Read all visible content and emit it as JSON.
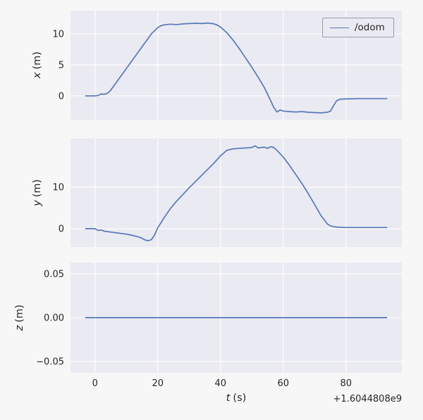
{
  "figure": {
    "background": "#f7f7f8",
    "axes_background": "#eaeaf2",
    "grid_color": "#ffffff",
    "line_color": "#5878b8",
    "text_color": "#262626",
    "legend_bg": "#eaeaf2",
    "legend_border": "#9a9aa2"
  },
  "legend": {
    "label": "/odom"
  },
  "xlabel": {
    "var": "t",
    "unit": "(s)"
  },
  "x_offset_text": "+1.6044808e9",
  "chart_data": [
    {
      "type": "line",
      "ylabel_var": "x",
      "ylabel_unit": "(m)",
      "xlim": [
        -7.8,
        97.8
      ],
      "ylim": [
        -3.9,
        13.75
      ],
      "xticks": [
        0,
        20,
        40,
        60,
        80
      ],
      "xtick_labels": [
        "0",
        "20",
        "40",
        "60",
        "80"
      ],
      "yticks": [
        0,
        5,
        10
      ],
      "ytick_labels": [
        "0",
        "5",
        "10"
      ],
      "legend": "/odom",
      "series": [
        {
          "name": "/odom",
          "x": [
            -3,
            0,
            1,
            2,
            3,
            4,
            5,
            6,
            8,
            10,
            12,
            14,
            16,
            18,
            20,
            21,
            22,
            24,
            26,
            28,
            30,
            32,
            34,
            36,
            38,
            39,
            40,
            42,
            44,
            46,
            48,
            50,
            52,
            54,
            56,
            57,
            58,
            59,
            60,
            62,
            64,
            66,
            68,
            70,
            72,
            74,
            75,
            76,
            77,
            78,
            80,
            84,
            88,
            93
          ],
          "y": [
            0,
            0,
            0.05,
            0.3,
            0.25,
            0.4,
            0.9,
            1.6,
            3.0,
            4.4,
            5.8,
            7.2,
            8.6,
            10.0,
            11.0,
            11.3,
            11.45,
            11.55,
            11.5,
            11.6,
            11.65,
            11.7,
            11.65,
            11.75,
            11.6,
            11.4,
            11.1,
            10.2,
            9.0,
            7.6,
            6.1,
            4.6,
            3.0,
            1.3,
            -0.8,
            -1.9,
            -2.6,
            -2.3,
            -2.45,
            -2.55,
            -2.6,
            -2.55,
            -2.65,
            -2.7,
            -2.75,
            -2.65,
            -2.5,
            -1.6,
            -0.8,
            -0.55,
            -0.5,
            -0.45,
            -0.45,
            -0.45
          ]
        }
      ]
    },
    {
      "type": "line",
      "ylabel_var": "y",
      "ylabel_unit": "(m)",
      "xlim": [
        -7.8,
        97.8
      ],
      "ylim": [
        -4.4,
        21.7
      ],
      "xticks": [
        0,
        20,
        40,
        60,
        80
      ],
      "xtick_labels": [
        "0",
        "20",
        "40",
        "60",
        "80"
      ],
      "yticks": [
        0,
        10
      ],
      "ytick_labels": [
        "0",
        "10"
      ],
      "series": [
        {
          "name": "/odom",
          "x": [
            -3,
            0,
            1,
            2,
            3,
            4,
            6,
            8,
            10,
            12,
            14,
            15,
            16,
            17,
            18,
            19,
            20,
            22,
            24,
            26,
            28,
            30,
            32,
            34,
            36,
            38,
            40,
            42,
            44,
            46,
            48,
            50,
            51,
            52,
            54,
            55,
            56,
            57,
            58,
            60,
            62,
            64,
            66,
            68,
            70,
            72,
            74,
            75,
            76,
            78,
            80,
            85,
            90,
            93
          ],
          "y": [
            0,
            0,
            -0.4,
            -0.3,
            -0.6,
            -0.7,
            -0.9,
            -1.1,
            -1.3,
            -1.6,
            -2.0,
            -2.3,
            -2.7,
            -2.9,
            -2.6,
            -1.5,
            0.2,
            2.6,
            4.8,
            6.6,
            8.2,
            9.8,
            11.3,
            12.8,
            14.3,
            15.8,
            17.5,
            18.8,
            19.2,
            19.3,
            19.4,
            19.5,
            19.9,
            19.4,
            19.6,
            19.3,
            19.7,
            19.5,
            18.8,
            17.2,
            15.2,
            13.0,
            10.8,
            8.4,
            5.8,
            3.2,
            1.2,
            0.7,
            0.5,
            0.35,
            0.3,
            0.3,
            0.3,
            0.3
          ]
        }
      ]
    },
    {
      "type": "line",
      "ylabel_var": "z",
      "ylabel_unit": "(m)",
      "xlim": [
        -7.8,
        97.8
      ],
      "ylim": [
        -0.063,
        0.063
      ],
      "xticks": [
        0,
        20,
        40,
        60,
        80
      ],
      "xtick_labels": [
        "0",
        "20",
        "40",
        "60",
        "80"
      ],
      "yticks": [
        -0.05,
        0,
        0.05
      ],
      "ytick_labels": [
        "−0.05",
        "0.00",
        "0.05"
      ],
      "show_xtick_labels": true,
      "series": [
        {
          "name": "/odom",
          "x": [
            -3,
            93
          ],
          "y": [
            0,
            0
          ]
        }
      ]
    }
  ]
}
